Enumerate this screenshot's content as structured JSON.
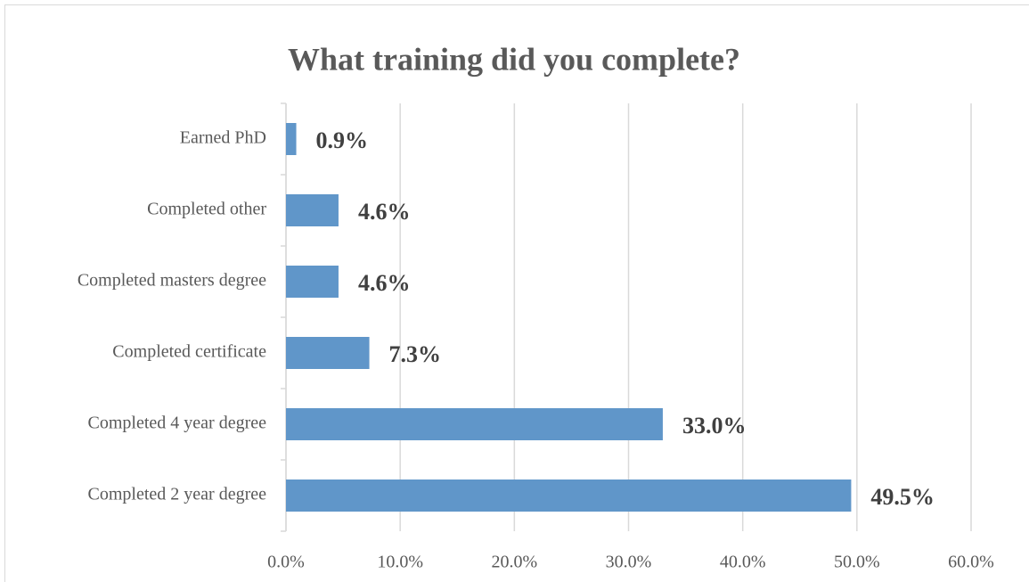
{
  "chart_data": {
    "type": "bar",
    "orientation": "horizontal",
    "title": "What training did you complete?",
    "categories": [
      "Earned PhD",
      "Completed other",
      "Completed masters degree",
      "Completed certificate",
      "Completed 4 year degree",
      "Completed 2 year degree"
    ],
    "values": [
      0.9,
      4.6,
      4.6,
      7.3,
      33.0,
      49.5
    ],
    "value_labels": [
      "0.9%",
      "4.6%",
      "4.6%",
      "7.3%",
      "33.0%",
      "49.5%"
    ],
    "color": "#6096c9",
    "xlim": [
      0,
      60
    ],
    "xticks": [
      {
        "value": 0,
        "label": "0.0%"
      },
      {
        "value": 10,
        "label": "10.0%"
      },
      {
        "value": 20,
        "label": "20.0%"
      },
      {
        "value": 30,
        "label": "30.0%"
      },
      {
        "value": 40,
        "label": "40.0%"
      },
      {
        "value": 50,
        "label": "50.0%"
      },
      {
        "value": 60,
        "label": "60.0%"
      }
    ],
    "grid": true
  }
}
